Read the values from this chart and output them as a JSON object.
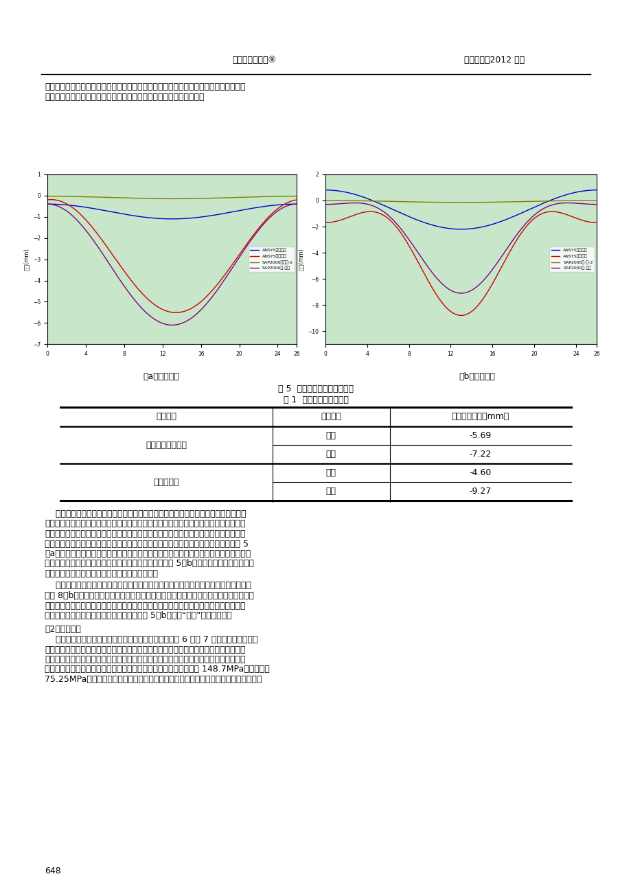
{
  "header_left": "钢结构工程研究⑨",
  "header_right": "《钢结构》2012 增刊",
  "para1": "竖向位移始终小于外圈梯梁。这表明内圈梯梁通过踏步板和底板与外圈梯梁协调变形，为",
  "para1b": "外圈梯梁提供支撑作用，外圈梯梁应承受的荷载部分传递给内圈梯梁。",
  "fig_caption_a": "（a）支座刚接",
  "fig_caption_b": "（b）支座铰接",
  "fig5_caption": "图 5  内外圈梯梁的竖向位移图",
  "table_title": "表 1  结构最大竖向位移表",
  "table_col1": "结构模型",
  "table_col2": "支座形式",
  "table_col3": "最大竖向位移（mm）",
  "table_row1_col1": "空间曲线杆件结构",
  "table_row1_col2a": "刚接",
  "table_row1_col2b": "铰接",
  "table_row1_col3a": "-5.69",
  "table_row1_col3b": "-7.22",
  "table_row2_col1": "空间壳结构",
  "table_row2_col2a": "刚接",
  "table_row2_col2b": "铰接",
  "table_row2_col3a": "-4.60",
  "table_row2_col3b": "-9.27",
  "page_number": "648",
  "bg_color": "#ffffff",
  "chart_bg": "#c8e6c9",
  "legend_labels_left": [
    "ANSYS内圈梯梁",
    "ANSYS外圈梯梁",
    "SAP2000内一层-2",
    "SAP2000外-全梯"
  ],
  "legend_labels_right": [
    "ANSYS内圈梯梁",
    "ANSYS外圈梯梁",
    "SAP2000内-层-2",
    "SAP2000外-全梯"
  ],
  "para2_lines": [
    "    需要说明的是，空间曲线杆件结构模型将螺旋楼梯简化为杆件结构，提取的位移只是",
    "某些节点处的位移，不能考虑截面翘曲的影响；而空间壳结构模型将钢螺旋楼梯视为壳单",
    "元结构，在受到荷载作用（尤其是扭转作用）时，截面会产生翘曲，同一截面处不同位置",
    "的位移将与截面形心处的位移不同，一些部位偏大，而另一些部位偏小，因此会出现图 5",
    "（a）所示的内圈梯梁产生向上的位移的现象。当支座约束较弱时，内外圈梯梁受到的扭转",
    "作用更大，引起的截面的翘曲也更加显著，这就导致了图 5（b）中空间壳结构模型比空间",
    "曲线杆件结构模型的竖向位移峰值大很多的现象。"
  ],
  "para3_lines": [
    "    当采用铰接节点时，钢螺旋楼梯中部踏步板的应力要比其他部分踏步板的应力大很多，",
    "如图 8（b）所示。这样的应力分布说明，由于扭转效应的影响，该处内圈梯梁通过踏步板",
    "对外圈梯梁的支撑作用比其他部分都要大，从而使外圈梯梁的中部位移减小，同时计入壳",
    "单元截面翘曲效应，最终内外圈梯梁均出现图 5（b）中的“马鞍”状位移分布。"
  ],
  "para4_head": "（2）内力分析",
  "para4_lines": [
    "    两种结构模型算得的钢结构螺旋楼梯应力情况分别如图 6 和图 7 所示。由两图均可看",
    "出：支座采用刚接节点时，应力较大部位于楼梯的两端和中部，分布较均匀；采用铰接节",
    "点时，应力最大部位出现在楼梯中部，其余部位均较小，分布不均匀。对于空间壳结构，",
    "忽略踏步板与梯梁连接处的应力集中，梯梁上的最大应力，铰接时为 148.7MPa，刚接时为",
    "75.25MPa。可见支座采用刚接节点时，可有效降低结构内力，且让内力分布更加均匀。"
  ]
}
